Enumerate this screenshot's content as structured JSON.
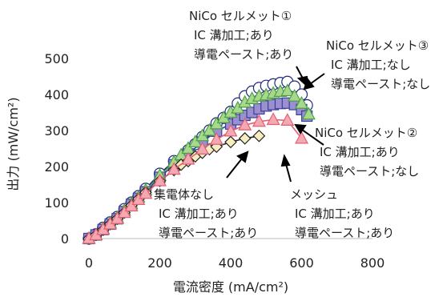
{
  "chart_data": {
    "type": "line",
    "xlabel": "電流密度 (mA/cm²)",
    "ylabel": "出力 (mW/cm²)",
    "xlim": [
      0,
      800
    ],
    "ylim": [
      0,
      500
    ],
    "x_ticks": [
      0,
      200,
      400,
      600,
      800
    ],
    "y_ticks": [
      0,
      100,
      200,
      300,
      400,
      500
    ],
    "grid": false,
    "series": [
      {
        "marker": "circle",
        "color": "#1f2a7a",
        "fill": "#ffffff",
        "points": [
          [
            0,
            0
          ],
          [
            20,
            12
          ],
          [
            40,
            30
          ],
          [
            60,
            45
          ],
          [
            80,
            60
          ],
          [
            100,
            82
          ],
          [
            120,
            100
          ],
          [
            140,
            118
          ],
          [
            160,
            138
          ],
          [
            200,
            180
          ],
          [
            240,
            215
          ],
          [
            280,
            245
          ],
          [
            300,
            262
          ],
          [
            320,
            282
          ],
          [
            340,
            300
          ],
          [
            360,
            320
          ],
          [
            380,
            335
          ],
          [
            400,
            352
          ],
          [
            420,
            375
          ],
          [
            440,
            395
          ],
          [
            460,
            408
          ],
          [
            480,
            418
          ],
          [
            500,
            424
          ],
          [
            520,
            428
          ],
          [
            540,
            432
          ],
          [
            560,
            435
          ],
          [
            580,
            422
          ],
          [
            600,
            400
          ],
          [
            615,
            370
          ]
        ]
      },
      {
        "marker": "square",
        "color": "#3a3f9a",
        "fill": "#9b8fd0",
        "points": [
          [
            0,
            0
          ],
          [
            20,
            10
          ],
          [
            40,
            25
          ],
          [
            60,
            40
          ],
          [
            80,
            55
          ],
          [
            100,
            75
          ],
          [
            120,
            95
          ],
          [
            140,
            112
          ],
          [
            160,
            130
          ],
          [
            200,
            170
          ],
          [
            240,
            205
          ],
          [
            280,
            235
          ],
          [
            320,
            268
          ],
          [
            360,
            298
          ],
          [
            400,
            318
          ],
          [
            420,
            330
          ],
          [
            440,
            342
          ],
          [
            460,
            350
          ],
          [
            480,
            360
          ],
          [
            500,
            368
          ],
          [
            520,
            372
          ],
          [
            540,
            375
          ],
          [
            560,
            376
          ],
          [
            580,
            372
          ],
          [
            600,
            358
          ],
          [
            615,
            340
          ]
        ]
      },
      {
        "marker": "triangle",
        "color": "#4e9e4e",
        "fill": "#a8d88a",
        "points": [
          [
            0,
            0
          ],
          [
            20,
            10
          ],
          [
            40,
            27
          ],
          [
            60,
            43
          ],
          [
            80,
            58
          ],
          [
            100,
            78
          ],
          [
            120,
            96
          ],
          [
            140,
            115
          ],
          [
            160,
            134
          ],
          [
            200,
            175
          ],
          [
            240,
            212
          ],
          [
            260,
            232
          ],
          [
            280,
            250
          ],
          [
            300,
            268
          ],
          [
            320,
            285
          ],
          [
            340,
            300
          ],
          [
            360,
            318
          ],
          [
            380,
            335
          ],
          [
            400,
            350
          ],
          [
            420,
            362
          ],
          [
            440,
            378
          ],
          [
            460,
            388
          ],
          [
            480,
            395
          ],
          [
            500,
            398
          ],
          [
            520,
            403
          ],
          [
            540,
            408
          ],
          [
            560,
            410
          ],
          [
            580,
            395
          ],
          [
            600,
            375
          ],
          [
            620,
            345
          ]
        ]
      },
      {
        "marker": "diamond",
        "color": "#222222",
        "fill": "#f6eec0",
        "points": [
          [
            0,
            0
          ],
          [
            20,
            10
          ],
          [
            40,
            24
          ],
          [
            60,
            40
          ],
          [
            80,
            55
          ],
          [
            100,
            72
          ],
          [
            120,
            92
          ],
          [
            140,
            110
          ],
          [
            160,
            128
          ],
          [
            200,
            160
          ],
          [
            240,
            190
          ],
          [
            260,
            205
          ],
          [
            280,
            215
          ],
          [
            300,
            228
          ],
          [
            320,
            238
          ],
          [
            340,
            248
          ],
          [
            360,
            255
          ],
          [
            400,
            268
          ],
          [
            440,
            278
          ],
          [
            480,
            285
          ]
        ]
      },
      {
        "marker": "triangle",
        "color": "#e06070",
        "fill": "#f4a8b4",
        "points": [
          [
            0,
            0
          ],
          [
            20,
            10
          ],
          [
            40,
            25
          ],
          [
            60,
            40
          ],
          [
            80,
            55
          ],
          [
            100,
            72
          ],
          [
            120,
            90
          ],
          [
            140,
            108
          ],
          [
            160,
            125
          ],
          [
            200,
            160
          ],
          [
            240,
            192
          ],
          [
            280,
            220
          ],
          [
            320,
            248
          ],
          [
            360,
            275
          ],
          [
            400,
            298
          ],
          [
            440,
            315
          ],
          [
            480,
            325
          ],
          [
            520,
            330
          ],
          [
            560,
            328
          ],
          [
            600,
            278
          ]
        ]
      }
    ],
    "annotations": [
      {
        "lines": [
          "NiCo セルメット①",
          "IC 溝加工;あり",
          "導電ペースト;あり"
        ]
      },
      {
        "lines": [
          "NiCo セルメット③",
          "IC 溝加工;なし",
          "導電ペースト;なし"
        ]
      },
      {
        "lines": [
          "NiCo セルメット②",
          "IC 溝加工;あり",
          "導電ペースト;なし"
        ]
      },
      {
        "lines": [
          "集電体なし",
          "IC 溝加工;あり",
          "導電ペースト;あり"
        ]
      },
      {
        "lines": [
          "メッシュ",
          "IC 溝加工;あり",
          "導電ペースト;あり"
        ]
      }
    ]
  }
}
